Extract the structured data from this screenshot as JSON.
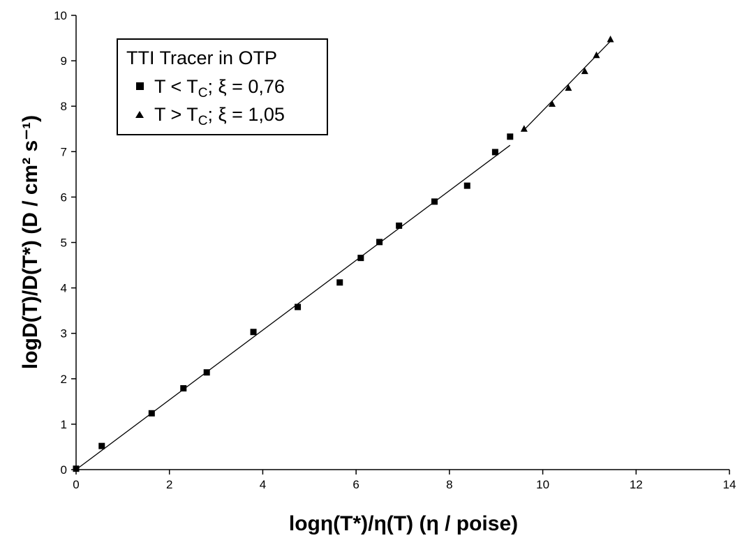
{
  "chart_data": {
    "type": "scatter",
    "title": "",
    "xlabel": "logη(T*)/η(T) (η / poise)",
    "ylabel": "logD(T)/D(T*) (D / cm² s⁻¹)",
    "xlim": [
      0,
      14
    ],
    "ylim": [
      0,
      10
    ],
    "xticks": [
      "0",
      "2",
      "4",
      "6",
      "8",
      "10",
      "12",
      "14"
    ],
    "yticks": [
      "0",
      "1",
      "2",
      "3",
      "4",
      "5",
      "6",
      "7",
      "8",
      "9",
      "10"
    ],
    "grid": false,
    "legend_position": "top-left",
    "legend_title": "TTI Tracer in OTP",
    "series": [
      {
        "name": "T < TC; ξ = 0,76",
        "marker": "square",
        "color": "#000000",
        "x": [
          0.0,
          0.55,
          1.62,
          2.3,
          2.8,
          3.8,
          4.75,
          5.65,
          6.1,
          6.5,
          6.92,
          7.68,
          8.38,
          8.98,
          9.3
        ],
        "y": [
          0.02,
          0.52,
          1.24,
          1.79,
          2.14,
          3.03,
          3.58,
          4.12,
          4.66,
          5.01,
          5.37,
          5.9,
          6.25,
          6.99,
          7.33
        ],
        "fit": {
          "x": [
            0.0,
            9.3
          ],
          "y": [
            0.0,
            7.14
          ]
        }
      },
      {
        "name": "T > TC; ξ = 1,05",
        "marker": "triangle",
        "color": "#000000",
        "x": [
          9.6,
          10.2,
          10.55,
          10.9,
          11.15,
          11.45
        ],
        "y": [
          7.5,
          8.05,
          8.4,
          8.77,
          9.12,
          9.47
        ],
        "fit": {
          "x": [
            9.6,
            11.45
          ],
          "y": [
            7.48,
            9.43
          ]
        }
      }
    ],
    "legend": {
      "title": "TTI Tracer in OTP",
      "entries": [
        {
          "pre": "T < T",
          "sub": "C",
          "post": "; ξ = 0,76"
        },
        {
          "pre": "T > T",
          "sub": "C",
          "post": "; ξ = 1,05"
        }
      ]
    }
  }
}
